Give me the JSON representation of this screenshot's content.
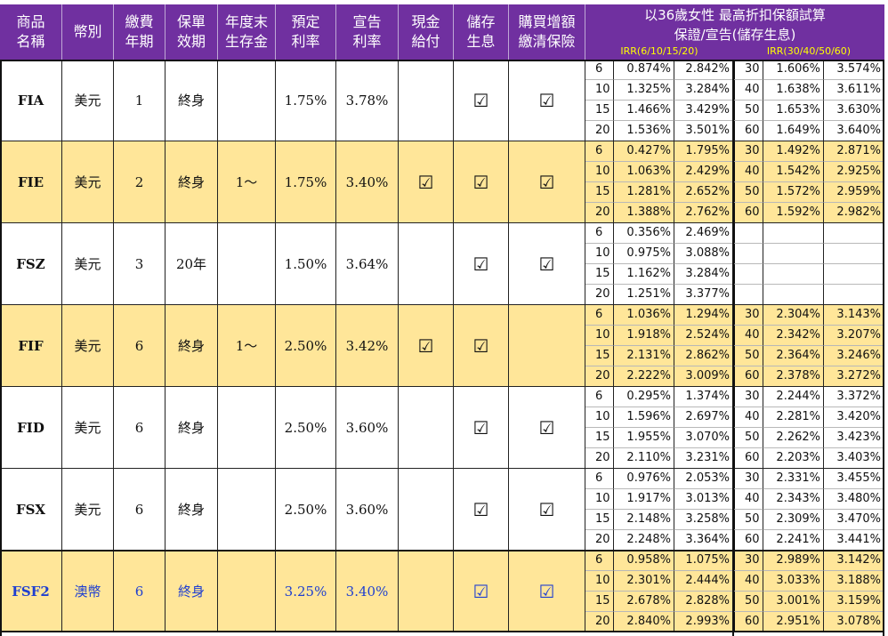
{
  "header": {
    "columns": [
      "商品\n名稱",
      "幣別",
      "繳費\n年期",
      "保單\n效期",
      "年度末\n生存金",
      "預定\n利率",
      "宣告\n利率",
      "現金\n給付",
      "儲存\n生息",
      "購買增額\n繳清保險"
    ],
    "irr_title_1": "以36歲女性 最高折扣保額試算",
    "irr_title_2": "保證/宣告(儲存生息)",
    "irr_sub_left": "IRR(6/10/15/20)",
    "irr_sub_right": "IRR(30/40/50/60)"
  },
  "check_mark": "☑",
  "colors": {
    "header_bg": "#7030a0",
    "highlight_bg": "#ffe699",
    "plain_bg": "#ffffff",
    "blue_text": "#1f3fd0",
    "irr_sub_text": "#ffff00"
  },
  "products": [
    {
      "name": "FIA",
      "currency": "美元",
      "pay_years": "1",
      "validity": "終身",
      "survival": "",
      "assumed_rate": "1.75%",
      "declared_rate": "3.78%",
      "cash_payment": false,
      "deposit_interest": true,
      "paid_up_addition": true,
      "highlight": false,
      "blue": false,
      "irr_short": [
        [
          "6",
          "0.874%",
          "2.842%"
        ],
        [
          "10",
          "1.325%",
          "3.284%"
        ],
        [
          "15",
          "1.466%",
          "3.429%"
        ],
        [
          "20",
          "1.536%",
          "3.501%"
        ]
      ],
      "irr_long": [
        [
          "30",
          "1.606%",
          "3.574%"
        ],
        [
          "40",
          "1.638%",
          "3.611%"
        ],
        [
          "50",
          "1.653%",
          "3.630%"
        ],
        [
          "60",
          "1.649%",
          "3.640%"
        ]
      ]
    },
    {
      "name": "FIE",
      "currency": "美元",
      "pay_years": "2",
      "validity": "終身",
      "survival": "1～",
      "assumed_rate": "1.75%",
      "declared_rate": "3.40%",
      "cash_payment": true,
      "deposit_interest": true,
      "paid_up_addition": true,
      "highlight": true,
      "blue": false,
      "irr_short": [
        [
          "6",
          "0.427%",
          "1.795%"
        ],
        [
          "10",
          "1.063%",
          "2.429%"
        ],
        [
          "15",
          "1.281%",
          "2.652%"
        ],
        [
          "20",
          "1.388%",
          "2.762%"
        ]
      ],
      "irr_long": [
        [
          "30",
          "1.492%",
          "2.871%"
        ],
        [
          "40",
          "1.542%",
          "2.925%"
        ],
        [
          "50",
          "1.572%",
          "2.959%"
        ],
        [
          "60",
          "1.592%",
          "2.982%"
        ]
      ]
    },
    {
      "name": "FSZ",
      "currency": "美元",
      "pay_years": "3",
      "validity": "20年",
      "survival": "",
      "assumed_rate": "1.50%",
      "declared_rate": "3.64%",
      "cash_payment": false,
      "deposit_interest": true,
      "paid_up_addition": true,
      "highlight": false,
      "blue": false,
      "irr_short": [
        [
          "6",
          "0.356%",
          "2.469%"
        ],
        [
          "10",
          "0.975%",
          "3.088%"
        ],
        [
          "15",
          "1.162%",
          "3.284%"
        ],
        [
          "20",
          "1.251%",
          "3.377%"
        ]
      ],
      "irr_long": [
        [
          "",
          "",
          ""
        ],
        [
          "",
          "",
          ""
        ],
        [
          "",
          "",
          ""
        ],
        [
          "",
          "",
          ""
        ]
      ]
    },
    {
      "name": "FIF",
      "currency": "美元",
      "pay_years": "6",
      "validity": "終身",
      "survival": "1～",
      "assumed_rate": "2.50%",
      "declared_rate": "3.42%",
      "cash_payment": true,
      "deposit_interest": true,
      "paid_up_addition": false,
      "highlight": true,
      "blue": false,
      "irr_short": [
        [
          "6",
          "1.036%",
          "1.294%"
        ],
        [
          "10",
          "1.918%",
          "2.524%"
        ],
        [
          "15",
          "2.131%",
          "2.862%"
        ],
        [
          "20",
          "2.222%",
          "3.009%"
        ]
      ],
      "irr_long": [
        [
          "30",
          "2.304%",
          "3.143%"
        ],
        [
          "40",
          "2.342%",
          "3.207%"
        ],
        [
          "50",
          "2.364%",
          "3.246%"
        ],
        [
          "60",
          "2.378%",
          "3.272%"
        ]
      ]
    },
    {
      "name": "FID",
      "currency": "美元",
      "pay_years": "6",
      "validity": "終身",
      "survival": "",
      "assumed_rate": "2.50%",
      "declared_rate": "3.60%",
      "cash_payment": false,
      "deposit_interest": true,
      "paid_up_addition": true,
      "highlight": false,
      "blue": false,
      "irr_short": [
        [
          "6",
          "0.295%",
          "1.374%"
        ],
        [
          "10",
          "1.596%",
          "2.697%"
        ],
        [
          "15",
          "1.955%",
          "3.070%"
        ],
        [
          "20",
          "2.110%",
          "3.231%"
        ]
      ],
      "irr_long": [
        [
          "30",
          "2.244%",
          "3.372%"
        ],
        [
          "40",
          "2.281%",
          "3.420%"
        ],
        [
          "50",
          "2.262%",
          "3.423%"
        ],
        [
          "60",
          "2.203%",
          "3.403%"
        ]
      ]
    },
    {
      "name": "FSX",
      "currency": "美元",
      "pay_years": "6",
      "validity": "終身",
      "survival": "",
      "assumed_rate": "2.50%",
      "declared_rate": "3.60%",
      "cash_payment": false,
      "deposit_interest": true,
      "paid_up_addition": true,
      "highlight": false,
      "blue": false,
      "irr_short": [
        [
          "6",
          "0.976%",
          "2.053%"
        ],
        [
          "10",
          "1.917%",
          "3.013%"
        ],
        [
          "15",
          "2.148%",
          "3.258%"
        ],
        [
          "20",
          "2.248%",
          "3.364%"
        ]
      ],
      "irr_long": [
        [
          "30",
          "2.331%",
          "3.455%"
        ],
        [
          "40",
          "2.343%",
          "3.480%"
        ],
        [
          "50",
          "2.309%",
          "3.470%"
        ],
        [
          "60",
          "2.241%",
          "3.441%"
        ]
      ]
    },
    {
      "name": "FSF2",
      "currency": "澳幣",
      "pay_years": "6",
      "validity": "終身",
      "survival": "",
      "assumed_rate": "3.25%",
      "declared_rate": "3.40%",
      "cash_payment": false,
      "deposit_interest": true,
      "paid_up_addition": true,
      "highlight": true,
      "blue": true,
      "irr_short": [
        [
          "6",
          "0.958%",
          "1.075%"
        ],
        [
          "10",
          "2.301%",
          "2.444%"
        ],
        [
          "15",
          "2.678%",
          "2.828%"
        ],
        [
          "20",
          "2.840%",
          "2.993%"
        ]
      ],
      "irr_long": [
        [
          "30",
          "2.989%",
          "3.142%"
        ],
        [
          "40",
          "3.033%",
          "3.188%"
        ],
        [
          "50",
          "3.001%",
          "3.159%"
        ],
        [
          "60",
          "2.951%",
          "3.078%"
        ]
      ]
    }
  ]
}
